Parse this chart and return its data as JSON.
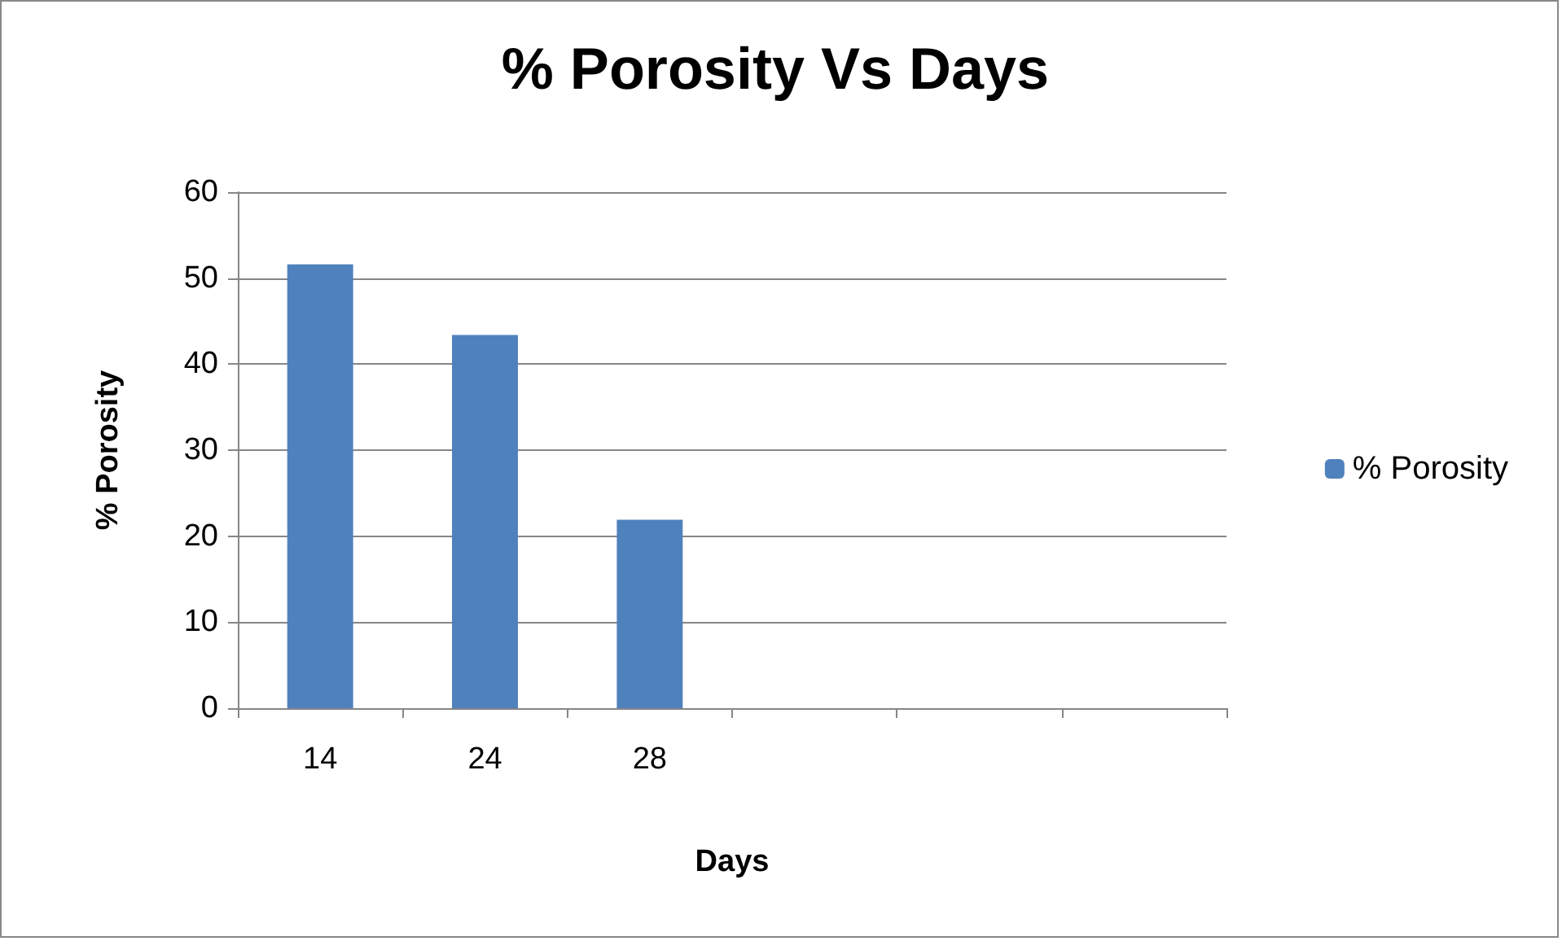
{
  "chart_data": {
    "type": "bar",
    "title": "% Porosity Vs Days",
    "xlabel": "Days",
    "ylabel": "% Porosity",
    "categories": [
      "14",
      "24",
      "28",
      null,
      null,
      null
    ],
    "series": [
      {
        "name": "% Porosity",
        "color": "#4f81bd",
        "values": [
          51.6,
          43.4,
          21.9,
          null,
          null,
          null
        ]
      }
    ],
    "ylim": [
      0,
      60
    ],
    "yticks": [
      0,
      10,
      20,
      30,
      40,
      50,
      60
    ],
    "grid": "y",
    "legend": "right"
  }
}
